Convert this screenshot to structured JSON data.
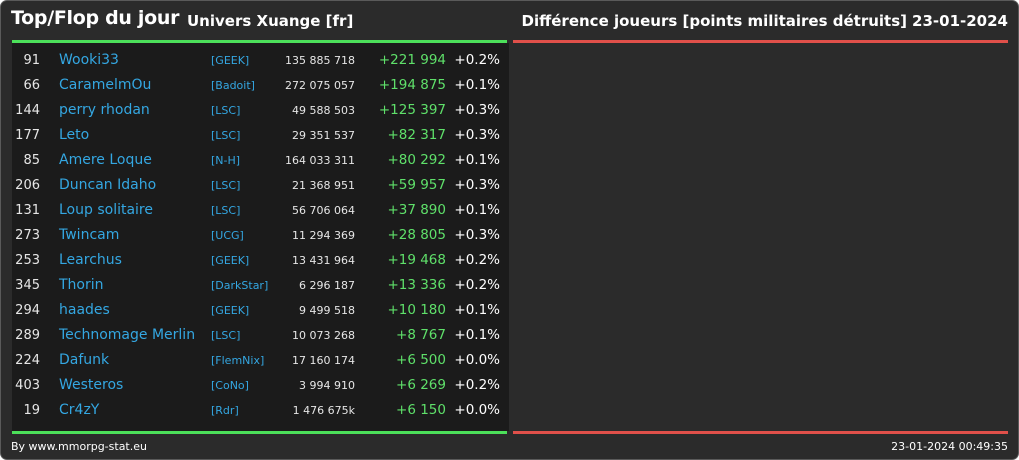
{
  "header": {
    "title": "Top/Flop du jour",
    "universe": "Univers Xuange [fr]",
    "metric": "Différence joueurs [points militaires détruits]",
    "date": "23-01-2024"
  },
  "colors": {
    "background": "#2b2b2b",
    "panel": "#1b1b1b",
    "top_bar": "#4ce05a",
    "flop_bar": "#e0504a",
    "link": "#34a7e2",
    "gain": "#5fe06a"
  },
  "rows": [
    {
      "rank": "91",
      "name": "Wooki33",
      "ally": "[GEEK]",
      "points": "135 885 718",
      "gain": "+221 994",
      "pct": "+0.2%"
    },
    {
      "rank": "66",
      "name": "CaramelmOu",
      "ally": "[Badoit]",
      "points": "272 075 057",
      "gain": "+194 875",
      "pct": "+0.1%"
    },
    {
      "rank": "144",
      "name": "perry rhodan",
      "ally": "[LSC]",
      "points": "49 588 503",
      "gain": "+125 397",
      "pct": "+0.3%"
    },
    {
      "rank": "177",
      "name": "Leto",
      "ally": "[LSC]",
      "points": "29 351 537",
      "gain": "+82 317",
      "pct": "+0.3%"
    },
    {
      "rank": "85",
      "name": "Amere Loque",
      "ally": "[N-H]",
      "points": "164 033 311",
      "gain": "+80 292",
      "pct": "+0.1%"
    },
    {
      "rank": "206",
      "name": "Duncan Idaho",
      "ally": "[LSC]",
      "points": "21 368 951",
      "gain": "+59 957",
      "pct": "+0.3%"
    },
    {
      "rank": "131",
      "name": "Loup solitaire",
      "ally": "[LSC]",
      "points": "56 706 064",
      "gain": "+37 890",
      "pct": "+0.1%"
    },
    {
      "rank": "273",
      "name": "Twincam",
      "ally": "[UCG]",
      "points": "11 294 369",
      "gain": "+28 805",
      "pct": "+0.3%"
    },
    {
      "rank": "253",
      "name": "Learchus",
      "ally": "[GEEK]",
      "points": "13 431 964",
      "gain": "+19 468",
      "pct": "+0.2%"
    },
    {
      "rank": "345",
      "name": "Thorin",
      "ally": "[DarkStar]",
      "points": "6 296 187",
      "gain": "+13 336",
      "pct": "+0.2%"
    },
    {
      "rank": "294",
      "name": "haades",
      "ally": "[GEEK]",
      "points": "9 499 518",
      "gain": "+10 180",
      "pct": "+0.1%"
    },
    {
      "rank": "289",
      "name": "Technomage Merlin",
      "ally": "[LSC]",
      "points": "10 073 268",
      "gain": "+8 767",
      "pct": "+0.1%"
    },
    {
      "rank": "224",
      "name": "Dafunk",
      "ally": "[FlemNix]",
      "points": "17 160 174",
      "gain": "+6 500",
      "pct": "+0.0%"
    },
    {
      "rank": "403",
      "name": "Westeros",
      "ally": "[CoNo]",
      "points": "3 994 910",
      "gain": "+6 269",
      "pct": "+0.2%"
    },
    {
      "rank": "19",
      "name": "Cr4zY",
      "ally": "[Rdr]",
      "points": "1 476 675k",
      "gain": "+6 150",
      "pct": "+0.0%"
    }
  ],
  "footer": {
    "credit": "By www.mmorpg-stat.eu",
    "timestamp": "23-01-2024 00:49:35"
  }
}
